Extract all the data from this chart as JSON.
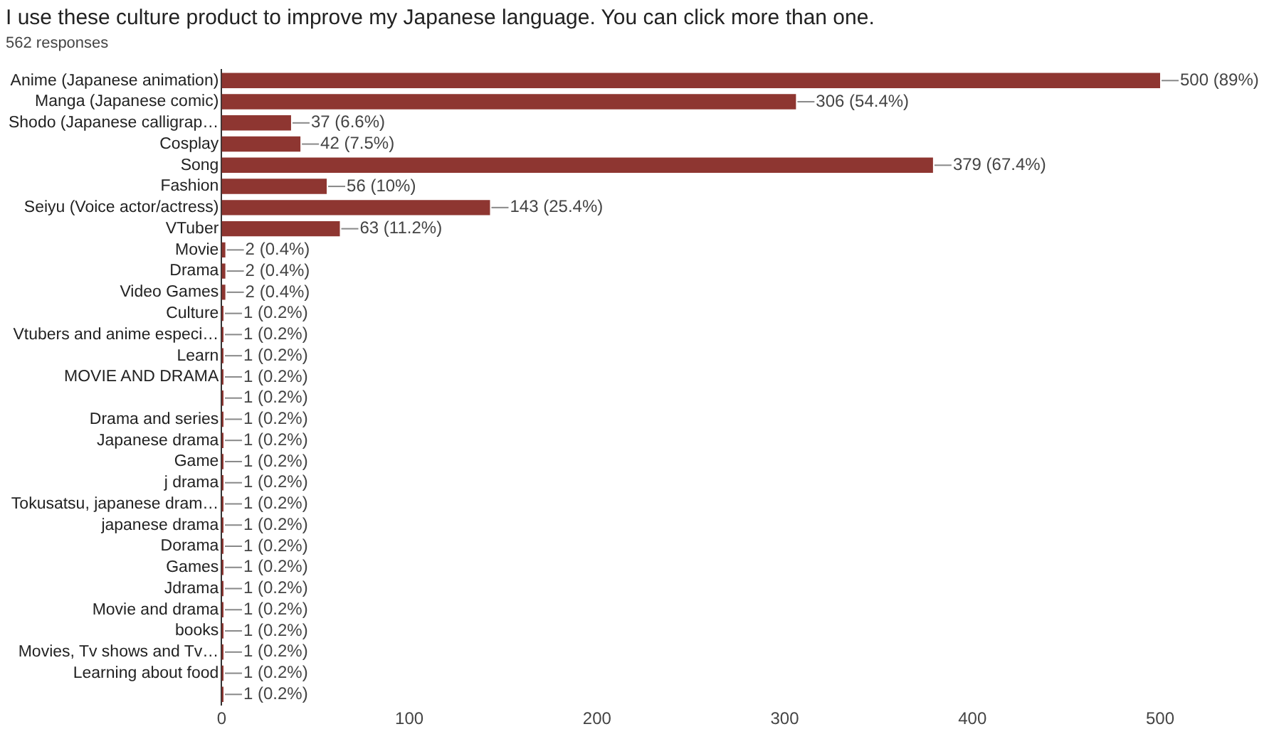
{
  "chart_data": {
    "type": "bar",
    "orientation": "horizontal",
    "title": "I use these culture product to improve my Japanese language. You can click more than one.",
    "subtitle": "562 responses",
    "categories": [
      "Anime (Japanese animation)",
      "Manga (Japanese comic)",
      "Shodo (Japanese calligrap…",
      "Cosplay",
      "Song",
      "Fashion",
      "Seiyu (Voice actor/actress)",
      "VTuber",
      "Movie",
      "Drama",
      "Video Games",
      "Culture",
      "Vtubers and anime especi…",
      "Learn",
      "MOVIE AND DRAMA",
      null,
      "Drama and series",
      "Japanese drama",
      "Game",
      "j drama",
      "Tokusatsu, japanese dram…",
      "japanese drama",
      "Dorama",
      "Games",
      "Jdrama",
      "Movie and drama",
      "books",
      "Movies, Tv shows and Tv…",
      "Learning about food",
      null
    ],
    "values": [
      500,
      306,
      37,
      42,
      379,
      56,
      143,
      63,
      2,
      2,
      2,
      1,
      1,
      1,
      1,
      1,
      1,
      1,
      1,
      1,
      1,
      1,
      1,
      1,
      1,
      1,
      1,
      1,
      1,
      1
    ],
    "value_labels": [
      "500 (89%)",
      "306 (54.4%)",
      "37 (6.6%)",
      "42 (7.5%)",
      "379 (67.4%)",
      "56 (10%)",
      "143 (25.4%)",
      "63 (11.2%)",
      "2 (0.4%)",
      "2 (0.4%)",
      "2 (0.4%)",
      "1 (0.2%)",
      "1 (0.2%)",
      "1 (0.2%)",
      "1 (0.2%)",
      "1 (0.2%)",
      "1 (0.2%)",
      "1 (0.2%)",
      "1 (0.2%)",
      "1 (0.2%)",
      "1 (0.2%)",
      "1 (0.2%)",
      "1 (0.2%)",
      "1 (0.2%)",
      "1 (0.2%)",
      "1 (0.2%)",
      "1 (0.2%)",
      "1 (0.2%)",
      "1 (0.2%)",
      "1 (0.2%)"
    ],
    "color": "#8e3631",
    "xlim": [
      0,
      500
    ],
    "xticks": [
      0,
      100,
      200,
      300,
      400,
      500
    ],
    "grid": false,
    "legend": false
  }
}
